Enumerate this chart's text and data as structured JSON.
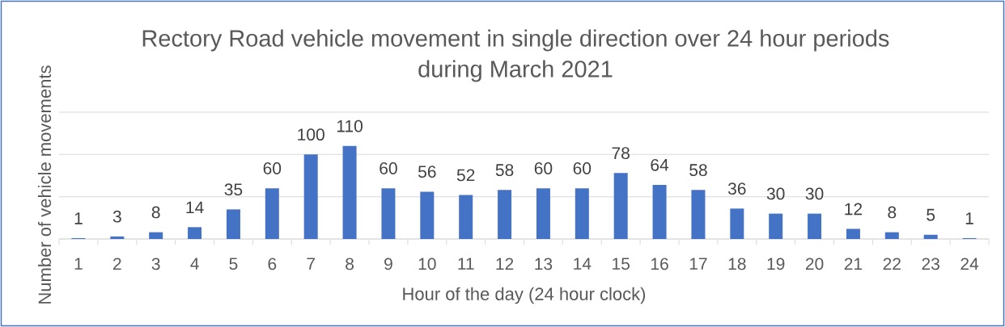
{
  "chart_data": {
    "type": "bar",
    "title": "Rectory Road vehicle movement in single direction over 24 hour periods during March 2021",
    "xlabel": "Hour of the day (24 hour clock)",
    "ylabel": "Number of vehicle movements",
    "categories": [
      "1",
      "2",
      "3",
      "4",
      "5",
      "6",
      "7",
      "8",
      "9",
      "10",
      "11",
      "12",
      "13",
      "14",
      "15",
      "16",
      "17",
      "18",
      "19",
      "20",
      "21",
      "22",
      "23",
      "24"
    ],
    "values": [
      1,
      3,
      8,
      14,
      35,
      60,
      100,
      110,
      60,
      56,
      52,
      58,
      60,
      60,
      78,
      64,
      58,
      36,
      30,
      30,
      12,
      8,
      5,
      1
    ],
    "color": "#4472c4",
    "ylim": [
      0,
      150
    ],
    "yticks": [
      {
        "value": 0,
        "label": null
      },
      {
        "value": 50,
        "label": null
      },
      {
        "value": 100,
        "label": null
      },
      {
        "value": 150,
        "label": null
      }
    ],
    "grid": "y",
    "tick_labels": "x",
    "data_labels": true
  }
}
